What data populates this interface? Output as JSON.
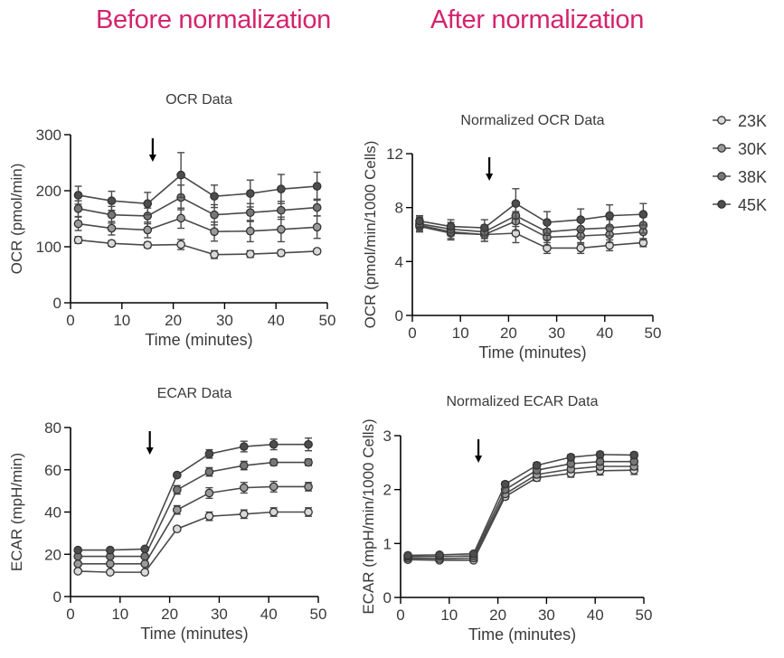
{
  "headings": {
    "before": "Before normalization",
    "after": "After normalization",
    "color": "#d4246d"
  },
  "legend": {
    "entries": [
      "23K",
      "30K",
      "38K",
      "45K"
    ],
    "marker_colors": [
      "#d9d9d9",
      "#9a9a9a",
      "#777777",
      "#4d4d4d"
    ]
  },
  "chart_data": [
    {
      "id": "ocr_raw",
      "type": "line",
      "title": "OCR Data",
      "xlabel": "Time (minutes)",
      "ylabel": "OCR (pmol/min)",
      "xlim": [
        0,
        50
      ],
      "ylim": [
        0,
        300
      ],
      "xticks": [
        0,
        10,
        20,
        30,
        40,
        50
      ],
      "yticks": [
        0,
        100,
        200,
        300
      ],
      "x": [
        1.5,
        8,
        15,
        21.5,
        28,
        35,
        41,
        48
      ],
      "arrow_x": 16,
      "series": [
        {
          "name": "23K",
          "values": [
            112,
            106,
            103,
            104,
            86,
            87,
            89,
            92
          ],
          "errors": [
            6,
            5,
            5,
            9,
            7,
            6,
            5,
            4
          ]
        },
        {
          "name": "30K",
          "values": [
            141,
            133,
            130,
            151,
            127,
            128,
            131,
            135
          ],
          "errors": [
            12,
            12,
            14,
            18,
            17,
            19,
            22,
            20
          ]
        },
        {
          "name": "38K",
          "values": [
            168,
            157,
            155,
            188,
            157,
            161,
            165,
            170
          ],
          "errors": [
            14,
            15,
            14,
            22,
            18,
            16,
            16,
            15
          ]
        },
        {
          "name": "45K",
          "values": [
            192,
            182,
            177,
            228,
            190,
            195,
            203,
            208
          ],
          "errors": [
            16,
            17,
            20,
            40,
            20,
            24,
            26,
            25
          ]
        }
      ]
    },
    {
      "id": "ocr_norm",
      "type": "line",
      "title": "Normalized OCR Data",
      "xlabel": "Time (minutes)",
      "ylabel": "OCR (pmol/min/1000 Cells)",
      "xlim": [
        0,
        50
      ],
      "ylim": [
        0,
        12
      ],
      "xticks": [
        0,
        10,
        20,
        30,
        40,
        50
      ],
      "yticks": [
        0,
        4,
        8,
        12
      ],
      "x": [
        1.5,
        8,
        15,
        21.5,
        28,
        35,
        41,
        48
      ],
      "arrow_x": 16,
      "series": [
        {
          "name": "23K",
          "values": [
            6.6,
            6.1,
            6.0,
            6.1,
            5.0,
            5.0,
            5.2,
            5.4
          ],
          "errors": [
            0.4,
            0.5,
            0.5,
            0.7,
            0.4,
            0.4,
            0.4,
            0.3
          ]
        },
        {
          "name": "30K",
          "values": [
            6.7,
            6.2,
            6.0,
            7.0,
            5.8,
            5.9,
            6.0,
            6.2
          ],
          "errors": [
            0.5,
            0.5,
            0.5,
            0.7,
            0.6,
            0.6,
            0.6,
            0.6
          ]
        },
        {
          "name": "38K",
          "values": [
            6.8,
            6.4,
            6.2,
            7.4,
            6.2,
            6.4,
            6.5,
            6.7
          ],
          "errors": [
            0.5,
            0.5,
            0.5,
            0.8,
            0.6,
            0.6,
            0.6,
            0.6
          ]
        },
        {
          "name": "45K",
          "values": [
            7.0,
            6.6,
            6.5,
            8.3,
            6.9,
            7.1,
            7.4,
            7.5
          ],
          "errors": [
            0.4,
            0.5,
            0.6,
            1.1,
            0.8,
            0.8,
            0.8,
            0.8
          ]
        }
      ]
    },
    {
      "id": "ecar_raw",
      "type": "line",
      "title": "ECAR Data",
      "xlabel": "Time (minutes)",
      "ylabel": "ECAR (mpH/min)",
      "xlim": [
        0,
        50
      ],
      "ylim": [
        0,
        80
      ],
      "xticks": [
        0,
        10,
        20,
        30,
        40,
        50
      ],
      "yticks": [
        0,
        20,
        40,
        60,
        80
      ],
      "x": [
        1.5,
        8,
        15,
        21.5,
        28,
        35,
        41,
        48
      ],
      "arrow_x": 16,
      "series": [
        {
          "name": "23K",
          "values": [
            12,
            11.5,
            11.5,
            32,
            38,
            39,
            40,
            40
          ],
          "errors": [
            0.5,
            0.5,
            0.5,
            1.0,
            2.0,
            2.0,
            2.0,
            2.0
          ]
        },
        {
          "name": "30K",
          "values": [
            15.5,
            15.5,
            15.5,
            41,
            49,
            51.5,
            52,
            52
          ],
          "errors": [
            0.5,
            0.5,
            0.5,
            2.0,
            2.5,
            2.5,
            2.5,
            2.0
          ]
        },
        {
          "name": "38K",
          "values": [
            19,
            19,
            19,
            50.5,
            59,
            62,
            63.5,
            63.5
          ],
          "errors": [
            0.5,
            0.5,
            0.5,
            2.0,
            2.0,
            2.0,
            1.5,
            1.5
          ]
        },
        {
          "name": "45K",
          "values": [
            22,
            22,
            22.5,
            57.5,
            67.5,
            71,
            72,
            72
          ],
          "errors": [
            0.5,
            0.5,
            0.5,
            1.0,
            2.0,
            2.5,
            2.5,
            3.0
          ]
        }
      ]
    },
    {
      "id": "ecar_norm",
      "type": "line",
      "title": "Normalized ECAR Data",
      "xlabel": "Time (minutes)",
      "ylabel": "ECAR (mpH/min/1000 Cells)",
      "xlim": [
        0,
        50
      ],
      "ylim": [
        0,
        3
      ],
      "xticks": [
        0,
        10,
        20,
        30,
        40,
        50
      ],
      "yticks": [
        0,
        1,
        2,
        3
      ],
      "x": [
        1.5,
        8,
        15,
        21.5,
        28,
        35,
        41,
        48
      ],
      "arrow_x": 16,
      "series": [
        {
          "name": "23K",
          "values": [
            0.7,
            0.69,
            0.69,
            1.87,
            2.22,
            2.3,
            2.35,
            2.36
          ],
          "errors": [
            0.02,
            0.02,
            0.02,
            0.05,
            0.06,
            0.07,
            0.08,
            0.08
          ]
        },
        {
          "name": "30K",
          "values": [
            0.73,
            0.72,
            0.73,
            1.92,
            2.28,
            2.38,
            2.43,
            2.43
          ],
          "errors": [
            0.02,
            0.02,
            0.02,
            0.05,
            0.06,
            0.06,
            0.06,
            0.06
          ]
        },
        {
          "name": "38K",
          "values": [
            0.76,
            0.76,
            0.77,
            2.0,
            2.36,
            2.48,
            2.52,
            2.52
          ],
          "errors": [
            0.02,
            0.02,
            0.02,
            0.05,
            0.06,
            0.06,
            0.06,
            0.06
          ]
        },
        {
          "name": "45K",
          "values": [
            0.78,
            0.79,
            0.81,
            2.1,
            2.45,
            2.6,
            2.65,
            2.64
          ],
          "errors": [
            0.02,
            0.02,
            0.02,
            0.05,
            0.05,
            0.05,
            0.05,
            0.05
          ]
        }
      ]
    }
  ]
}
